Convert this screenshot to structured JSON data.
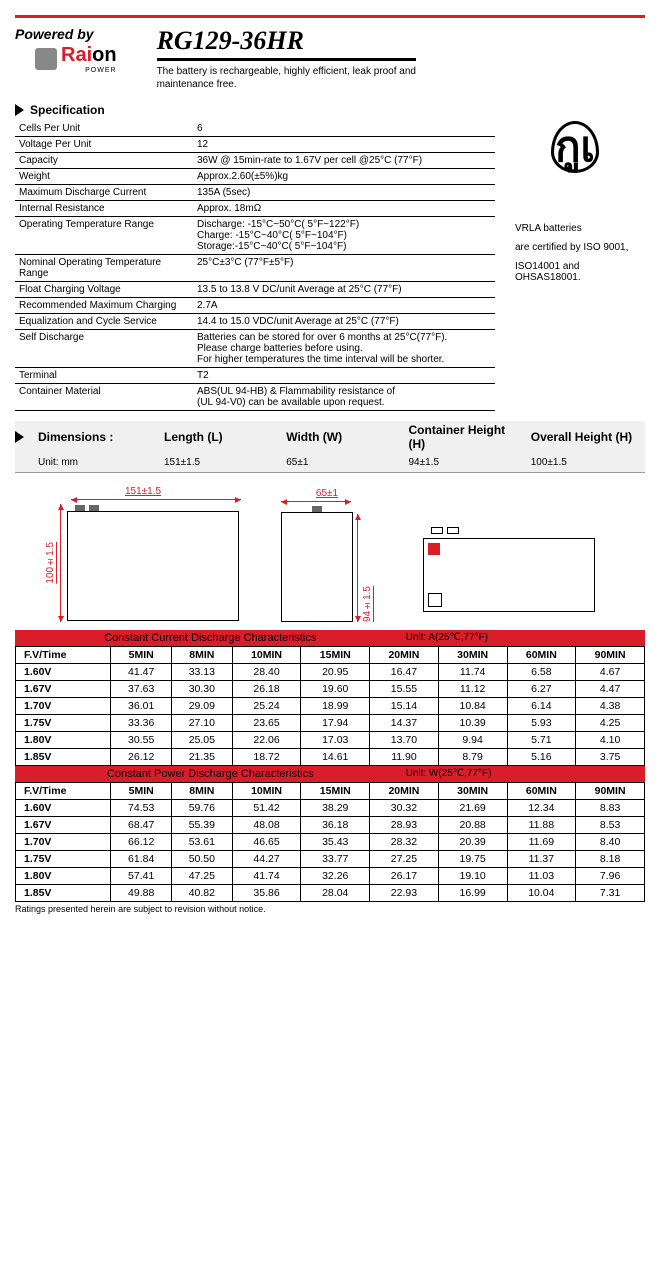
{
  "colors": {
    "accent": "#d91e2a",
    "text": "#000000",
    "bg": "#ffffff",
    "band_bg": "#d91e2a",
    "dim_row_bg": "#f0f0f0"
  },
  "header": {
    "powered_by": "Powered by",
    "logo_word1": "Rai",
    "logo_word2": "on",
    "logo_sub": "POWER",
    "product_title": "RG129-36HR",
    "product_desc1": "The battery is rechargeable, highly efficient, leak proof and",
    "product_desc2": "maintenance free."
  },
  "spec_heading": "Specification",
  "spec_rows": [
    {
      "k": "Cells Per Unit",
      "v": "6"
    },
    {
      "k": "Voltage Per Unit",
      "v": "12"
    },
    {
      "k": "Capacity",
      "v": "36W @ 15min-rate to 1.67V per cell @25°C (77°F)"
    },
    {
      "k": "Weight",
      "v": "Approx.2.60(±5%)kg"
    },
    {
      "k": "Maximum Discharge Current",
      "v": "135A (5sec)"
    },
    {
      "k": "Internal Resistance",
      "v": "Approx. 18mΩ"
    },
    {
      "k": "Operating Temperature Range",
      "v": "Discharge: -15°C~50°C( 5°F~122°F)\nCharge: -15°C~40°C( 5°F~104°F)\nStorage:-15°C~40°C( 5°F~104°F)"
    },
    {
      "k": "Nominal Operating Temperature Range",
      "v": "25°C±3°C (77°F±5°F)"
    },
    {
      "k": "Float Charging Voltage",
      "v": "13.5 to 13.8 V DC/unit Average at 25°C (77°F)"
    },
    {
      "k": "Recommended Maximum Charging",
      "v": "2.7A"
    },
    {
      "k": "Equalization and Cycle Service",
      "v": "14.4 to 15.0 VDC/unit Average at 25°C (77°F)"
    },
    {
      "k": "Self Discharge",
      "v": "Batteries can be stored for over 6 months at 25°C(77°F).\nPlease charge batteries before using.\nFor higher temperatures the time interval will be shorter."
    },
    {
      "k": "Terminal",
      "v": "T2"
    },
    {
      "k": "Container Material",
      "v": "ABS(UL 94-HB) & Flammability resistance of\n(UL 94-V0) can be available upon request."
    }
  ],
  "cert_mark": "กูเ",
  "cert_text1": "VRLA batteries",
  "cert_text2": "are certified by ISO 9001,",
  "cert_text3": "ISO14001 and OHSAS18001.",
  "dimensions": {
    "heading": "Dimensions :",
    "unit_label": "Unit: mm",
    "cols": [
      "Length (L)",
      "Width (W)",
      "Container Height (H)",
      "Overall Height (H)"
    ],
    "vals": [
      "151±1.5",
      "65±1",
      "94±1.5",
      "100±1.5"
    ]
  },
  "drawings": {
    "front_w": "151±1.5",
    "front_h": "100±1.5",
    "side_w": "65±1",
    "side_h": "94±1.5"
  },
  "table1": {
    "title": "Constant Current Discharge Characteristics",
    "unit": "Unit: A(25℃,77°F)",
    "head": [
      "F.V/Time",
      "5MIN",
      "8MIN",
      "10MIN",
      "15MIN",
      "20MIN",
      "30MIN",
      "60MIN",
      "90MIN"
    ],
    "rows": [
      [
        "1.60V",
        "41.47",
        "33.13",
        "28.40",
        "20.95",
        "16.47",
        "11.74",
        "6.58",
        "4.67"
      ],
      [
        "1.67V",
        "37.63",
        "30.30",
        "26.18",
        "19.60",
        "15.55",
        "11.12",
        "6.27",
        "4.47"
      ],
      [
        "1.70V",
        "36.01",
        "29.09",
        "25.24",
        "18.99",
        "15.14",
        "10.84",
        "6.14",
        "4.38"
      ],
      [
        "1.75V",
        "33.36",
        "27.10",
        "23.65",
        "17.94",
        "14.37",
        "10.39",
        "5.93",
        "4.25"
      ],
      [
        "1.80V",
        "30.55",
        "25.05",
        "22.06",
        "17.03",
        "13.70",
        "9.94",
        "5.71",
        "4.10"
      ],
      [
        "1.85V",
        "26.12",
        "21.35",
        "18.72",
        "14.61",
        "11.90",
        "8.79",
        "5.16",
        "3.75"
      ]
    ]
  },
  "table2": {
    "title": "Constant Power Discharge Characteristics",
    "unit": "Unit: W(25℃,77°F)",
    "head": [
      "F.V/Time",
      "5MIN",
      "8MIN",
      "10MIN",
      "15MIN",
      "20MIN",
      "30MIN",
      "60MIN",
      "90MIN"
    ],
    "rows": [
      [
        "1.60V",
        "74.53",
        "59.76",
        "51.42",
        "38.29",
        "30.32",
        "21.69",
        "12.34",
        "8.83"
      ],
      [
        "1.67V",
        "68.47",
        "55.39",
        "48.08",
        "36.18",
        "28.93",
        "20.88",
        "11.88",
        "8.53"
      ],
      [
        "1.70V",
        "66.12",
        "53.61",
        "46.65",
        "35.43",
        "28.32",
        "20.39",
        "11.69",
        "8.40"
      ],
      [
        "1.75V",
        "61.84",
        "50.50",
        "44.27",
        "33.77",
        "27.25",
        "19.75",
        "11.37",
        "8.18"
      ],
      [
        "1.80V",
        "57.41",
        "47.25",
        "41.74",
        "32.26",
        "26.17",
        "19.10",
        "11.03",
        "7.96"
      ],
      [
        "1.85V",
        "49.88",
        "40.82",
        "35.86",
        "28.04",
        "22.93",
        "16.99",
        "10.04",
        "7.31"
      ]
    ]
  },
  "footnote": "Ratings presented herein are subject to revision without notice."
}
